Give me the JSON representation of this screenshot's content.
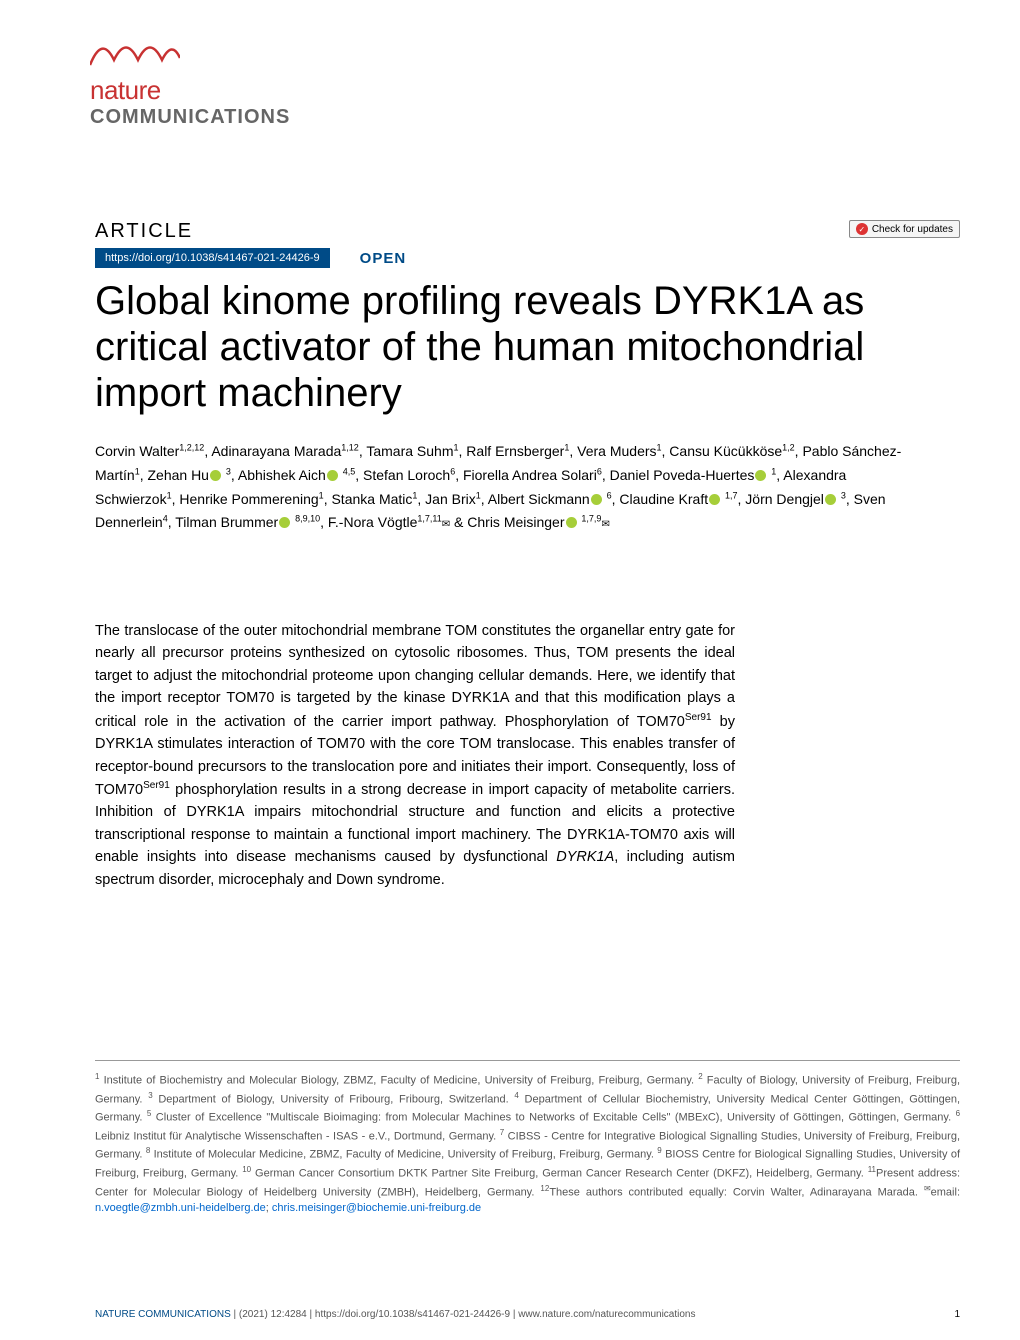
{
  "journal_logo": {
    "line1": "nature",
    "line2": "COMMUNICATIONS",
    "wave_color": "#c83232",
    "text1_color": "#c83232",
    "text2_color": "#666666"
  },
  "check_updates": "Check for updates",
  "article_label": "ARTICLE",
  "doi": "https://doi.org/10.1038/s41467-021-24426-9",
  "open_label": "OPEN",
  "title": "Global kinome profiling reveals DYRK1A as critical activator of the human mitochondrial import machinery",
  "authors_html": "Corvin Walter<sup>1,2,12</sup>, Adinarayana Marada<sup>1,12</sup>, Tamara Suhm<sup>1</sup>, Ralf Ernsberger<sup>1</sup>, Vera Muders<sup>1</sup>, Cansu Kücükköse<sup>1,2</sup>, Pablo Sánchez-Martín<sup>1</sup>, Zehan Hu<span class='orcid'></span> <sup>3</sup>, Abhishek Aich<span class='orcid'></span> <sup>4,5</sup>, Stefan Loroch<sup>6</sup>, Fiorella Andrea Solari<sup>6</sup>, Daniel Poveda-Huertes<span class='orcid'></span> <sup>1</sup>, Alexandra Schwierzok<sup>1</sup>, Henrike Pommerening<sup>1</sup>, Stanka Matic<sup>1</sup>, Jan Brix<sup>1</sup>, Albert Sickmann<span class='orcid'></span> <sup>6</sup>, Claudine Kraft<span class='orcid'></span> <sup>1,7</sup>, Jörn Dengjel<span class='orcid'></span> <sup>3</sup>, Sven Dennerlein<sup>4</sup>, Tilman Brummer<span class='orcid'></span> <sup>8,9,10</sup>, F.-Nora Vögtle<sup>1,7,11</sup><span class='envelope'>✉</span> & Chris Meisinger<span class='orcid'></span> <sup>1,7,9</sup><span class='envelope'>✉</span>",
  "abstract": "The translocase of the outer mitochondrial membrane TOM constitutes the organellar entry gate for nearly all precursor proteins synthesized on cytosolic ribosomes. Thus, TOM presents the ideal target to adjust the mitochondrial proteome upon changing cellular demands. Here, we identify that the import receptor TOM70 is targeted by the kinase DYRK1A and that this modification plays a critical role in the activation of the carrier import pathway. Phosphorylation of TOM70<sup>Ser91</sup> by DYRK1A stimulates interaction of TOM70 with the core TOM translocase. This enables transfer of receptor-bound precursors to the translocation pore and initiates their import. Consequently, loss of TOM70<sup>Ser91</sup> phosphorylation results in a strong decrease in import capacity of metabolite carriers. Inhibition of DYRK1A impairs mitochondrial structure and function and elicits a protective transcriptional response to maintain a functional import machinery. The DYRK1A-TOM70 axis will enable insights into disease mechanisms caused by dysfunctional <i>DYRK1A</i>, including autism spectrum disorder, microcephaly and Down syndrome.",
  "affiliations_html": "<sup>1</sup> Institute of Biochemistry and Molecular Biology, ZBMZ, Faculty of Medicine, University of Freiburg, Freiburg, Germany. <sup>2</sup> Faculty of Biology, University of Freiburg, Freiburg, Germany. <sup>3</sup> Department of Biology, University of Fribourg, Fribourg, Switzerland. <sup>4</sup> Department of Cellular Biochemistry, University Medical Center Göttingen, Göttingen, Germany. <sup>5</sup> Cluster of Excellence \"Multiscale Bioimaging: from Molecular Machines to Networks of Excitable Cells\" (MBExC), University of Göttingen, Göttingen, Germany. <sup>6</sup> Leibniz Institut für Analytische Wissenschaften - ISAS - e.V., Dortmund, Germany. <sup>7</sup> CIBSS - Centre for Integrative Biological Signalling Studies, University of Freiburg, Freiburg, Germany. <sup>8</sup> Institute of Molecular Medicine, ZBMZ, Faculty of Medicine, University of Freiburg, Freiburg, Germany. <sup>9</sup> BIOSS Centre for Biological Signalling Studies, University of Freiburg, Freiburg, Germany. <sup>10</sup> German Cancer Consortium DKTK Partner Site Freiburg, German Cancer Research Center (DKFZ), Heidelberg, Germany. <sup>11</sup>Present address: Center for Molecular Biology of Heidelberg University (ZMBH), Heidelberg, Germany. <sup>12</sup>These authors contributed equally: Corvin Walter, Adinarayana Marada. <sup>✉</sup>email: <span class='email-link'>n.voegtle@zmbh.uni-heidelberg.de</span>; <span class='email-link'>chris.meisinger@biochemie.uni-freiburg.de</span>",
  "footer": {
    "journal": "NATURE COMMUNICATIONS",
    "citation": "|      (2021) 12:4284 | https://doi.org/10.1038/s41467-021-24426-9 | www.nature.com/naturecommunications",
    "page": "1"
  },
  "colors": {
    "doi_bg": "#004b87",
    "orcid": "#a6ce39",
    "link": "#0066cc",
    "body_text": "#000000",
    "affil_text": "#555555"
  }
}
